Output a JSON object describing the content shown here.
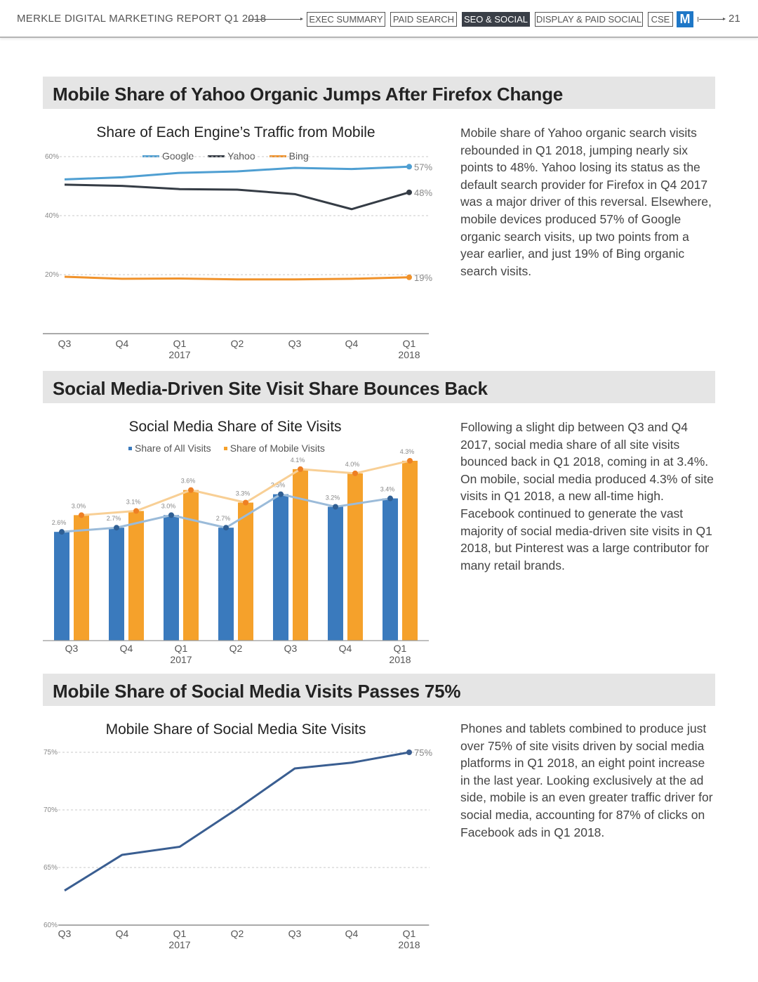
{
  "header": {
    "report_title": "MERKLE DIGITAL MARKETING REPORT Q1 2018",
    "nav_tabs": [
      "EXEC SUMMARY",
      "PAID SEARCH",
      "SEO & SOCIAL",
      "DISPLAY & PAID SOCIAL",
      "CSE"
    ],
    "active_tab": "SEO & SOCIAL",
    "logo_text": "M",
    "page_number": "21"
  },
  "sections": [
    {
      "title": "Mobile Share of Yahoo Organic Jumps After Firefox Change",
      "body": "Mobile share of Yahoo organic search visits rebounded in Q1 2018, jumping nearly six points to 48%. Yahoo losing its status as the default search provider for Firefox in Q4 2017 was a major driver of this reversal. Elsewhere, mobile devices produced 57% of Google organic search visits, up two points from a year earlier, and just 19% of Bing organic search visits."
    },
    {
      "title": "Social Media-Driven Site Visit Share Bounces Back",
      "body": "Following a slight dip between Q3 and Q4 2017, social media share of all site visits bounced back in Q1 2018, coming in at 3.4%. On mobile, social media produced 4.3% of site visits in Q1 2018, a new all-time high. Facebook continued to generate the vast majority of social media-driven site visits in Q1 2018, but Pinterest was a large contributor for many retail brands."
    },
    {
      "title": "Mobile Share of Social Media Visits Passes 75%",
      "body": "Phones and tablets combined to produce just over 75% of site visits driven by social media platforms in Q1 2018, an eight point increase in the last year. Looking exclusively at the ad side, mobile is an even greater traffic driver for social media, accounting for 87% of clicks on Facebook ads in Q1 2018."
    }
  ],
  "chart_data": [
    {
      "type": "line",
      "title": "Share of Each Engine’s Traffic from Mobile",
      "categories": [
        "Q3",
        "Q4",
        "Q1",
        "Q2",
        "Q3",
        "Q4",
        "Q1"
      ],
      "year_labels": [
        "",
        "",
        "2017",
        "",
        "",
        "",
        "2018"
      ],
      "ylim": [
        0,
        60
      ],
      "yticks": [
        20,
        40,
        60
      ],
      "ytick_labels": [
        "20%",
        "40%",
        "60%"
      ],
      "grid": true,
      "legend_position": "top",
      "series": [
        {
          "name": "Google",
          "color": "#4f9fd2",
          "values": [
            52.3,
            53,
            54.5,
            55,
            56.2,
            55.8,
            56.6
          ],
          "end_label": "57%"
        },
        {
          "name": "Yahoo",
          "color": "#353c45",
          "values": [
            50.5,
            50.1,
            49,
            48.8,
            47.3,
            42.2,
            47.9
          ],
          "end_label": "48%"
        },
        {
          "name": "Bing",
          "color": "#f0922b",
          "values": [
            19.3,
            18.6,
            18.7,
            18.4,
            18.4,
            18.6,
            19.1
          ],
          "end_label": "19%"
        }
      ]
    },
    {
      "type": "bar",
      "title": "Social Media Share of Site Visits",
      "categories": [
        "Q3",
        "Q4",
        "Q1",
        "Q2",
        "Q3",
        "Q4",
        "Q1"
      ],
      "year_labels": [
        "",
        "",
        "2017",
        "",
        "",
        "",
        "2018"
      ],
      "ylim": [
        0,
        4.4
      ],
      "grid": false,
      "legend_position": "top",
      "series": [
        {
          "name": "Share of All Visits",
          "color": "#3a7abd",
          "line_color": "#9bbbd9",
          "values": [
            2.6,
            2.7,
            3.0,
            2.7,
            3.5,
            3.2,
            3.4
          ],
          "labels": [
            "2.6%",
            "2.7%",
            "3.0%",
            "2.7%",
            "3.5%",
            "3.2%",
            "3.4%"
          ]
        },
        {
          "name": "Share of Mobile Visits",
          "color": "#f5a12b",
          "line_color": "#f8cf95",
          "values": [
            3.0,
            3.1,
            3.6,
            3.3,
            4.1,
            4.0,
            4.3
          ],
          "labels": [
            "3.0%",
            "3.1%",
            "3.6%",
            "3.3%",
            "4.1%",
            "4.0%",
            "4.3%"
          ]
        }
      ]
    },
    {
      "type": "line",
      "title": "Mobile Share of Social Media Site Visits",
      "categories": [
        "Q3",
        "Q4",
        "Q1",
        "Q2",
        "Q3",
        "Q4",
        "Q1"
      ],
      "year_labels": [
        "",
        "",
        "2017",
        "",
        "",
        "",
        "2018"
      ],
      "ylim": [
        60,
        75
      ],
      "yticks": [
        60,
        65,
        70,
        75
      ],
      "ytick_labels": [
        "60%",
        "65%",
        "70%",
        "75%"
      ],
      "grid": true,
      "series": [
        {
          "name": "",
          "color": "#3a5e91",
          "values": [
            63.0,
            66.1,
            66.8,
            70.1,
            73.6,
            74.1,
            75.0
          ],
          "end_label": "75%"
        }
      ]
    }
  ]
}
